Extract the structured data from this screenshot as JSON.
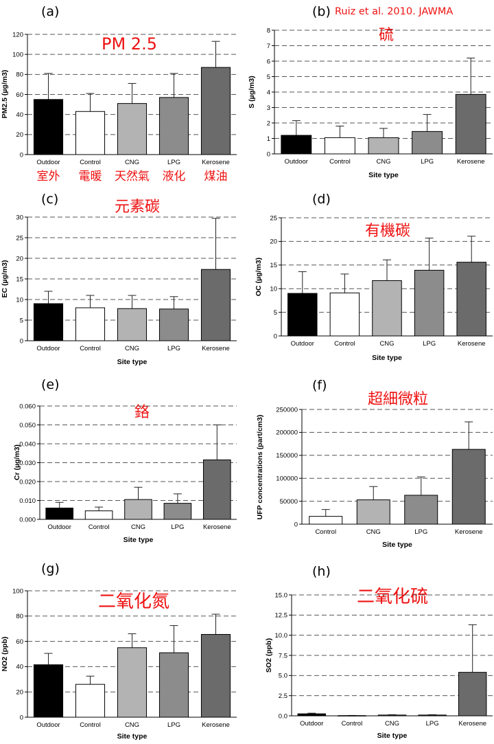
{
  "credit": "Ruiz et al. 2010. JAWMA",
  "chart_data": [
    {
      "type": "bar",
      "panel": "(a)",
      "title": "PM 2.5",
      "ylabel": "PM2.5 (µg/m3)",
      "xlabel": "",
      "categories": [
        "Outdoor",
        "Control",
        "CNG",
        "LPG",
        "Kerosene"
      ],
      "category_labels_zh": [
        "室外",
        "電暖",
        "天然氣",
        "液化",
        "煤油"
      ],
      "values": [
        55,
        43,
        51,
        57,
        87
      ],
      "errors": [
        26,
        18,
        20,
        24,
        26
      ],
      "ylim": [
        0,
        120
      ],
      "yticks": [
        "0",
        "20",
        "40",
        "60",
        "80",
        "100",
        "120"
      ],
      "grid": "dashed horizontal"
    },
    {
      "type": "bar",
      "panel": "(b)",
      "title": "硫",
      "ylabel": "S (µg/m3)",
      "xlabel": "Site type",
      "categories": [
        "Outdoor",
        "Control",
        "CNG",
        "LPG",
        "Kerosene"
      ],
      "values": [
        1.2,
        1.05,
        1.05,
        1.45,
        3.85
      ],
      "errors": [
        0.95,
        0.75,
        0.6,
        1.1,
        2.35
      ],
      "ylim": [
        0,
        8
      ],
      "yticks": [
        "0",
        "1",
        "2",
        "3",
        "4",
        "5",
        "6",
        "7",
        "8"
      ],
      "grid": "dashed horizontal"
    },
    {
      "type": "bar",
      "panel": "(c)",
      "title": "元素碳",
      "ylabel": "EC (µg/m3)",
      "xlabel": "Site type",
      "categories": [
        "Outdoor",
        "Control",
        "CNG",
        "LPG",
        "Kerosene"
      ],
      "values": [
        9,
        8,
        7.8,
        7.7,
        17.3
      ],
      "errors": [
        3,
        3,
        3.2,
        3,
        12.4
      ],
      "ylim": [
        0,
        30
      ],
      "yticks": [
        "0",
        "5",
        "10",
        "15",
        "20",
        "25",
        "30"
      ],
      "grid": "dashed horizontal"
    },
    {
      "type": "bar",
      "panel": "(d)",
      "title": "有機碳",
      "ylabel": "OC (µg/m3)",
      "xlabel": "Site type",
      "categories": [
        "Outdoor",
        "Control",
        "CNG",
        "LPG",
        "Kerosene"
      ],
      "values": [
        9,
        9.1,
        11.7,
        13.9,
        15.6
      ],
      "errors": [
        4.6,
        4,
        4.4,
        6.8,
        5.5
      ],
      "ylim": [
        0,
        25
      ],
      "yticks": [
        "0",
        "5",
        "10",
        "15",
        "20",
        "25"
      ],
      "grid": "dashed horizontal"
    },
    {
      "type": "bar",
      "panel": "(e)",
      "title": "鉻",
      "ylabel": "Cr (µg/m3)",
      "xlabel": "Site type",
      "categories": [
        "Outdoor",
        "Control",
        "CNG",
        "LPG",
        "Kerosene"
      ],
      "values": [
        0.006,
        0.0045,
        0.0105,
        0.0085,
        0.0315
      ],
      "errors": [
        0.003,
        0.002,
        0.0065,
        0.005,
        0.0185
      ],
      "ylim": [
        0,
        0.06
      ],
      "yticks": [
        "0.000",
        "0.010",
        "0.020",
        "0.030",
        "0.040",
        "0.050",
        "0.060"
      ],
      "grid": "dashed horizontal"
    },
    {
      "type": "bar",
      "panel": "(f)",
      "title": "超細微粒",
      "ylabel": "UFP concentrations (part/cm3)",
      "xlabel": "Site type",
      "categories": [
        "Control",
        "CNG",
        "LPG",
        "Kerosene"
      ],
      "values": [
        17000,
        53000,
        63000,
        163000
      ],
      "errors": [
        15000,
        29000,
        40000,
        60000
      ],
      "ylim": [
        0,
        250000
      ],
      "yticks": [
        "0",
        "50000",
        "100000",
        "150000",
        "200000",
        "250000"
      ],
      "grid": "dashed horizontal"
    },
    {
      "type": "bar",
      "panel": "(g)",
      "title": "二氧化氮",
      "ylabel": "NO2 (ppb)",
      "xlabel": "Site type",
      "categories": [
        "Outdoor",
        "Control",
        "CNG",
        "LPG",
        "Kerosene"
      ],
      "values": [
        41.5,
        26,
        55,
        51,
        65.5
      ],
      "errors": [
        9,
        6.5,
        11,
        21.5,
        16
      ],
      "ylim": [
        0,
        100
      ],
      "yticks": [
        "0",
        "20",
        "40",
        "60",
        "80",
        "100"
      ],
      "grid": "dashed horizontal"
    },
    {
      "type": "bar",
      "panel": "(h)",
      "title": "二氧化硫",
      "ylabel": "SO2 (ppb)",
      "xlabel": "Site type",
      "categories": [
        "Outdoor",
        "Control",
        "CNG",
        "LPG",
        "Kerosene"
      ],
      "values": [
        0.25,
        0.03,
        0.1,
        0.1,
        5.4
      ],
      "errors": [
        0.08,
        0.02,
        0.04,
        0.04,
        5.9
      ],
      "ylim": [
        0,
        15
      ],
      "yticks": [
        "0.0",
        "2.5",
        "5.0",
        "7.5",
        "10.0",
        "12.5",
        "15.0"
      ],
      "grid": "dashed horizontal"
    }
  ],
  "colors": {
    "Outdoor": "#000000",
    "Control": "#ffffff",
    "CNG": "#b3b3b3",
    "LPG": "#8c8c8c",
    "Kerosene": "#6b6b6b",
    "title": "#ee1111"
  }
}
